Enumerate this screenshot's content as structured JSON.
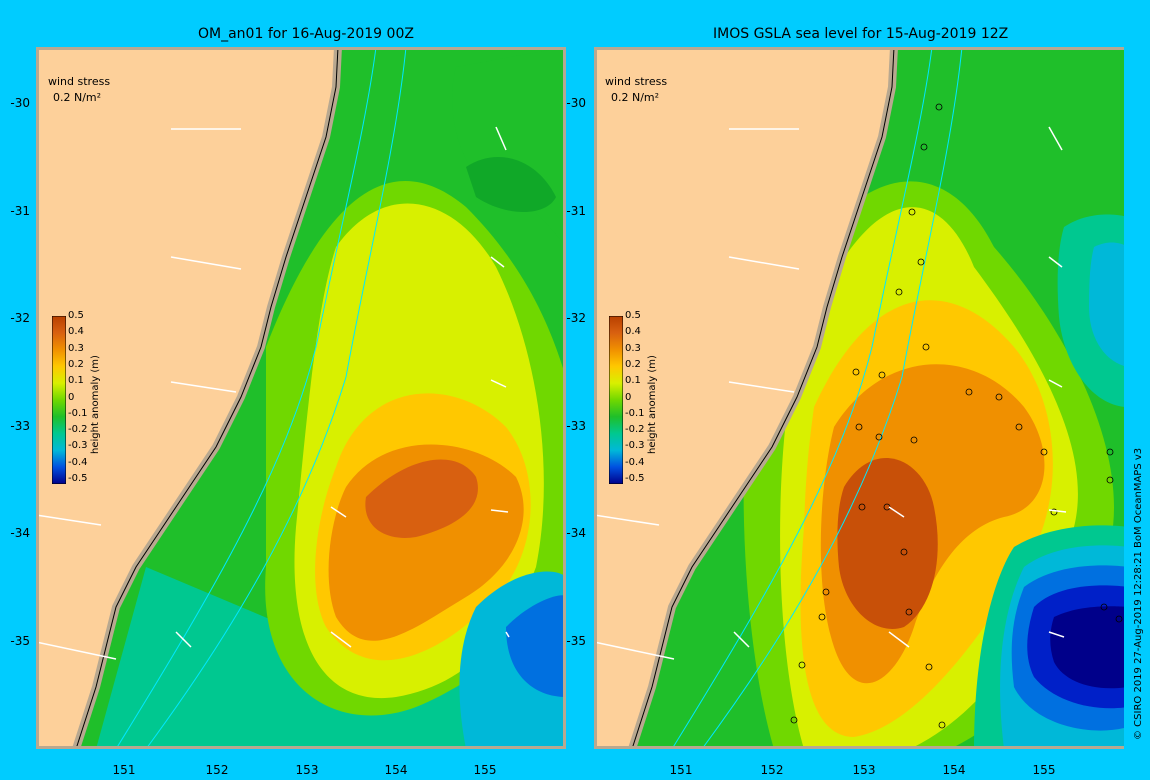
{
  "panels": [
    {
      "title": "OM_an01 for 16-Aug-2019 00Z",
      "wind_label": "wind stress",
      "wind_scale": "0.2 N/m²",
      "colorbar_title": "height anomaly (m)"
    },
    {
      "title": "IMOS GSLA sea level  for 15-Aug-2019 12Z",
      "wind_label": "wind stress",
      "wind_scale": "0.2 N/m²",
      "colorbar_title": "height anomaly (m)"
    }
  ],
  "y_ticks": [
    "-30",
    "-31",
    "-32",
    "-33",
    "-34",
    "-35"
  ],
  "x_ticks": [
    "151",
    "152",
    "153",
    "154",
    "155"
  ],
  "colorbar_ticks": [
    "0.5",
    "0.4",
    "0.3",
    "0.2",
    "0.1",
    "0",
    "-0.1",
    "-0.2",
    "-0.3",
    "-0.4",
    "-0.5"
  ],
  "credit": "© CSIRO 2019  27-Aug-2019 12:28:21 BoM OceanMAPS v3",
  "colors": {
    "background": "#00ccff",
    "land": "#fdd09a",
    "coast": "#b8a890",
    "level_m05": "#00008a",
    "level_m04": "#0020c8",
    "level_m03": "#0070e0",
    "level_m02": "#00b8d8",
    "level_m01": "#00c890",
    "level_0": "#1fbf2a",
    "level_01": "#70d800",
    "level_02": "#d8f000",
    "level_03": "#ffc800",
    "level_04": "#f09000",
    "level_05": "#b84000"
  }
}
